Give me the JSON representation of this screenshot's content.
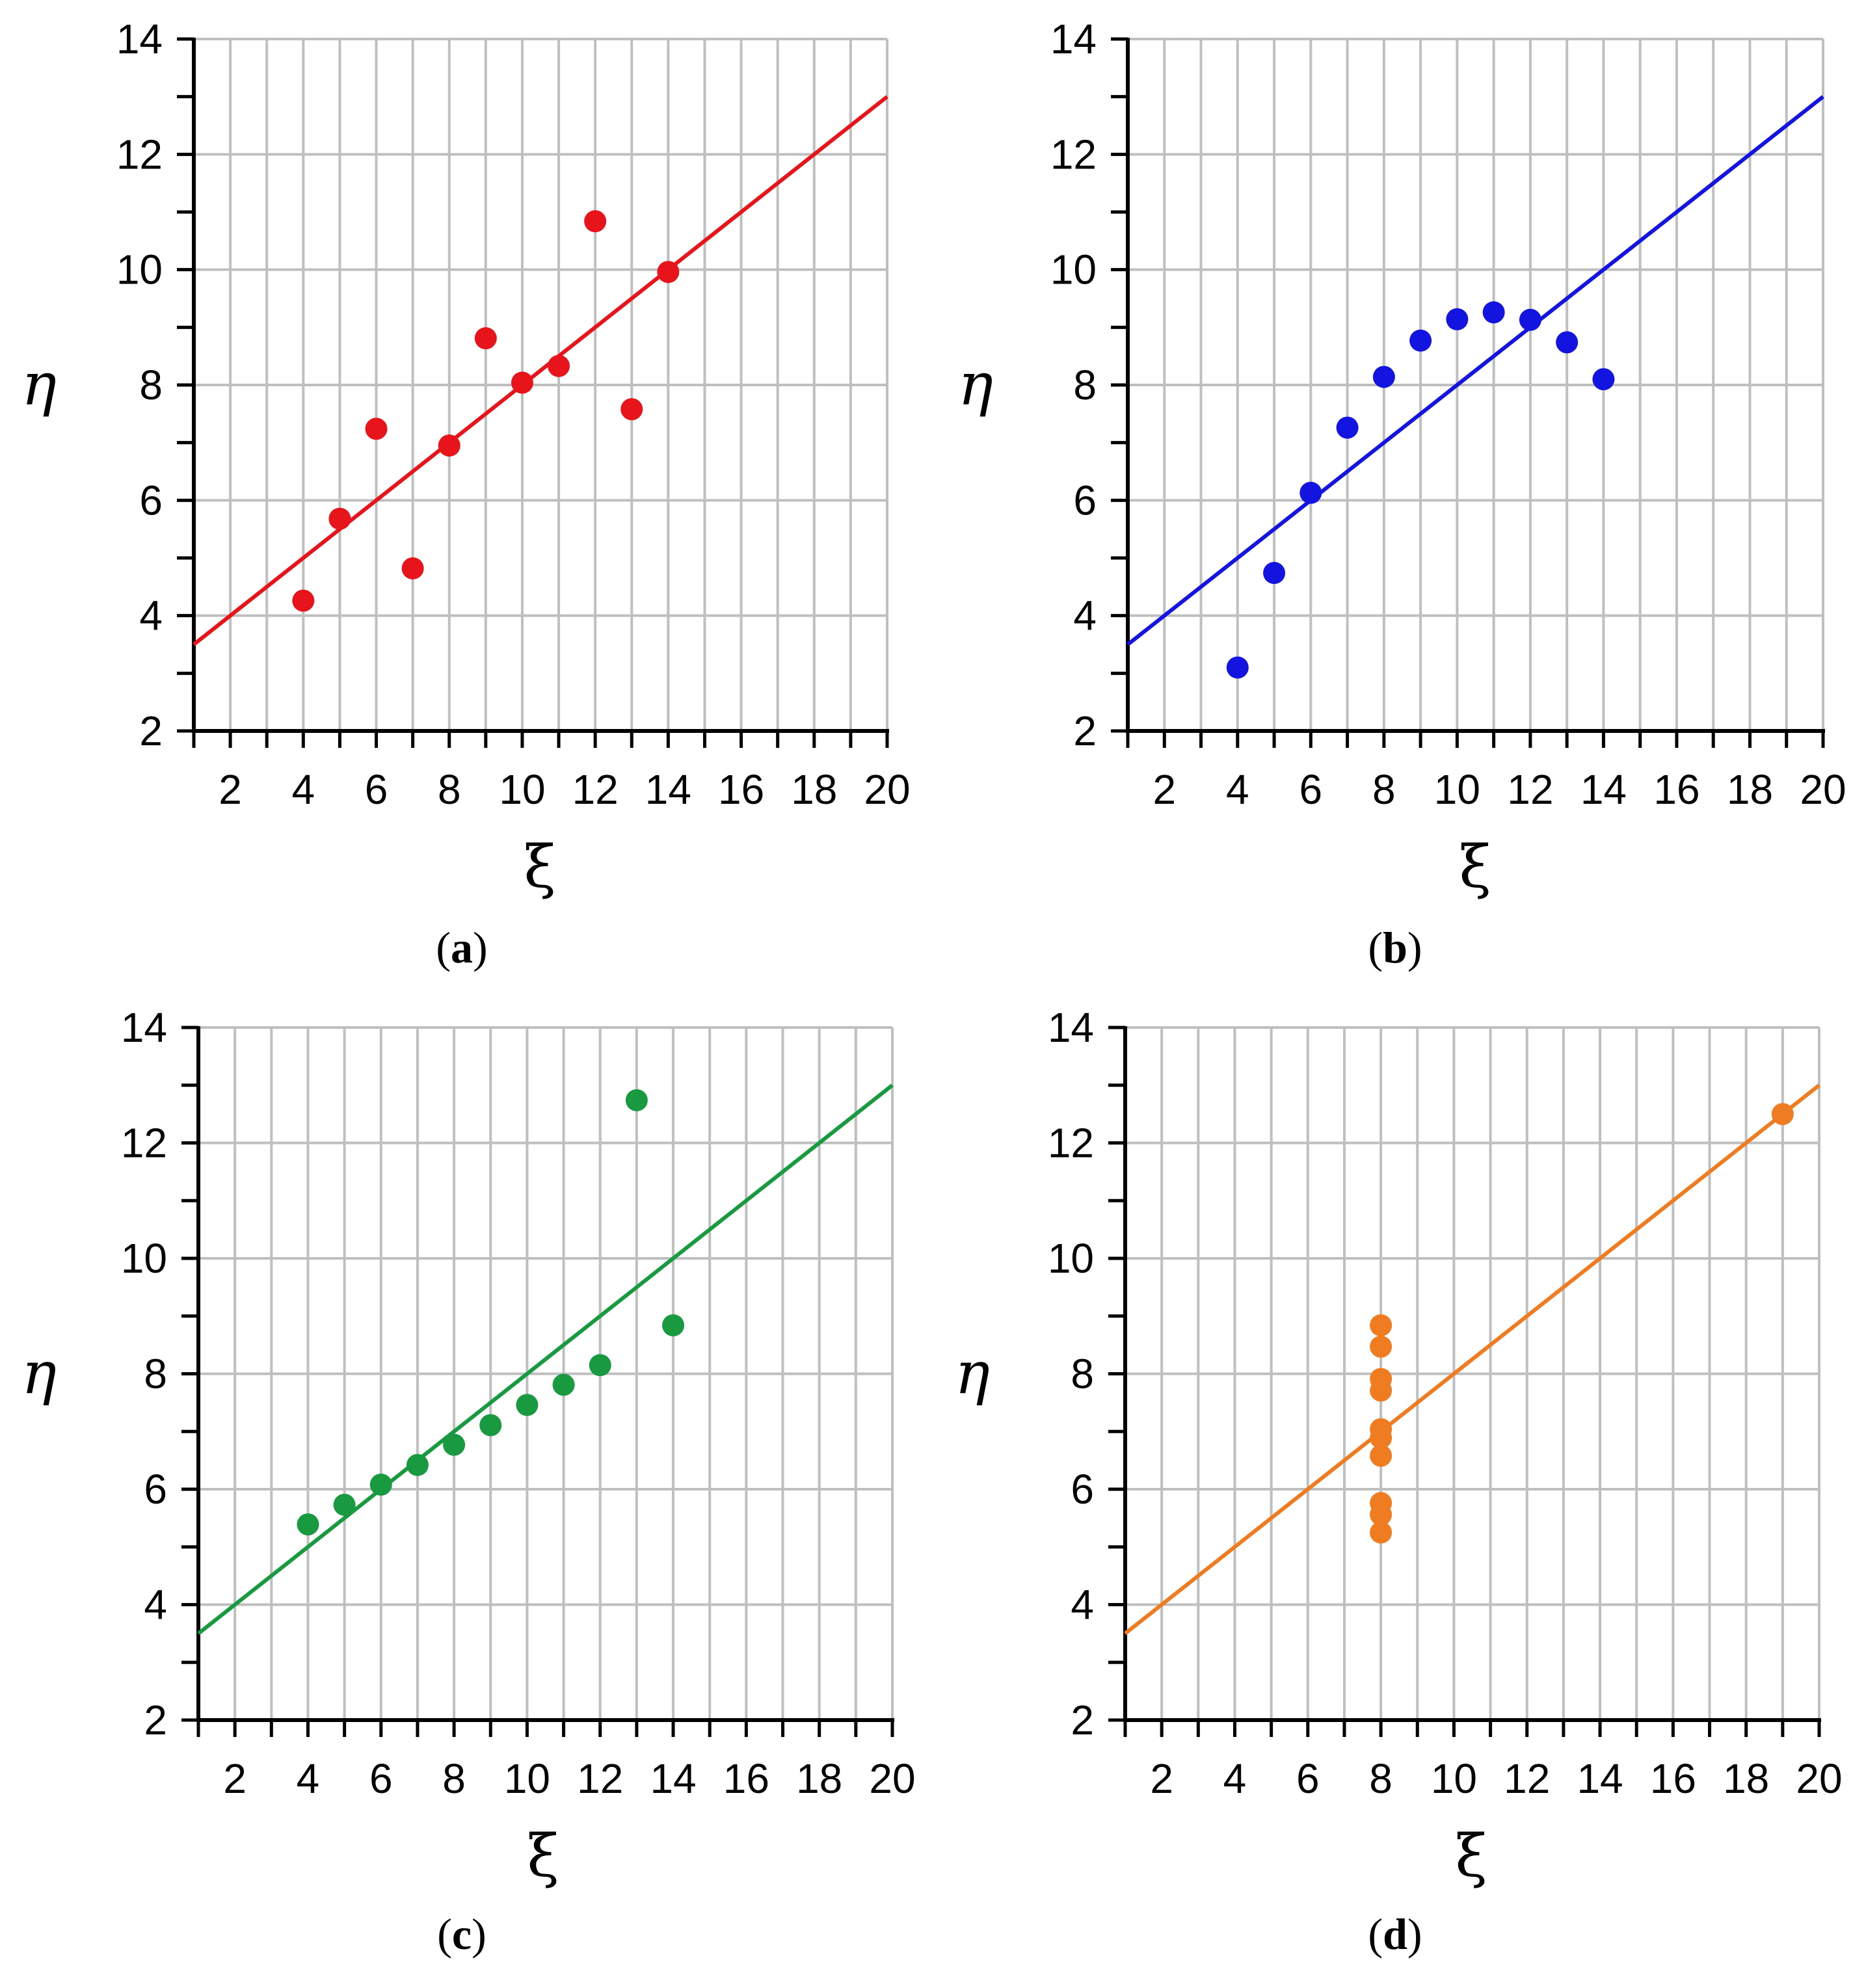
{
  "chart_data": [
    {
      "type": "scatter",
      "panel_label": "a",
      "color": "#e8141c",
      "xlabel": "ξ",
      "ylabel": "η",
      "xlim": [
        1,
        20
      ],
      "ylim": [
        2,
        14
      ],
      "x_ticks": [
        2,
        4,
        6,
        8,
        10,
        12,
        14,
        16,
        18,
        20
      ],
      "y_ticks": [
        2,
        4,
        6,
        8,
        10,
        12,
        14
      ],
      "points": {
        "x": [
          10,
          8,
          13,
          9,
          11,
          14,
          6,
          4,
          12,
          7,
          5
        ],
        "y": [
          8.04,
          6.95,
          7.58,
          8.81,
          8.33,
          9.96,
          7.24,
          4.26,
          10.84,
          4.82,
          5.68
        ]
      },
      "fit_line": {
        "x": [
          1,
          20
        ],
        "y": [
          3.5,
          13.0
        ]
      }
    },
    {
      "type": "scatter",
      "panel_label": "b",
      "color": "#1414e0",
      "xlabel": "ξ",
      "ylabel": "η",
      "xlim": [
        1,
        20
      ],
      "ylim": [
        2,
        14
      ],
      "x_ticks": [
        2,
        4,
        6,
        8,
        10,
        12,
        14,
        16,
        18,
        20
      ],
      "y_ticks": [
        2,
        4,
        6,
        8,
        10,
        12,
        14
      ],
      "points": {
        "x": [
          10,
          8,
          13,
          9,
          11,
          14,
          6,
          4,
          12,
          7,
          5
        ],
        "y": [
          9.14,
          8.14,
          8.74,
          8.77,
          9.26,
          8.1,
          6.13,
          3.1,
          9.13,
          7.26,
          4.74
        ]
      },
      "fit_line": {
        "x": [
          1,
          20
        ],
        "y": [
          3.5,
          13.0
        ]
      }
    },
    {
      "type": "scatter",
      "panel_label": "c",
      "color": "#1a9a40",
      "xlabel": "ξ",
      "ylabel": "η",
      "xlim": [
        1,
        20
      ],
      "ylim": [
        2,
        14
      ],
      "x_ticks": [
        2,
        4,
        6,
        8,
        10,
        12,
        14,
        16,
        18,
        20
      ],
      "y_ticks": [
        2,
        4,
        6,
        8,
        10,
        12,
        14
      ],
      "points": {
        "x": [
          10,
          8,
          13,
          9,
          11,
          14,
          6,
          4,
          12,
          7,
          5
        ],
        "y": [
          7.46,
          6.77,
          12.74,
          7.11,
          7.81,
          8.84,
          6.08,
          5.39,
          8.15,
          6.42,
          5.73
        ]
      },
      "fit_line": {
        "x": [
          1,
          20
        ],
        "y": [
          3.5,
          13.0
        ]
      }
    },
    {
      "type": "scatter",
      "panel_label": "d",
      "color": "#f07c22",
      "xlabel": "ξ",
      "ylabel": "η",
      "xlim": [
        1,
        20
      ],
      "ylim": [
        2,
        14
      ],
      "x_ticks": [
        2,
        4,
        6,
        8,
        10,
        12,
        14,
        16,
        18,
        20
      ],
      "y_ticks": [
        2,
        4,
        6,
        8,
        10,
        12,
        14
      ],
      "points": {
        "x": [
          8,
          8,
          8,
          8,
          8,
          8,
          8,
          19,
          8,
          8,
          8
        ],
        "y": [
          6.58,
          5.76,
          7.71,
          8.84,
          8.47,
          7.04,
          5.25,
          12.5,
          5.56,
          7.91,
          6.89
        ]
      },
      "fit_line": {
        "x": [
          1,
          20
        ],
        "y": [
          3.5,
          13.0
        ]
      }
    }
  ]
}
